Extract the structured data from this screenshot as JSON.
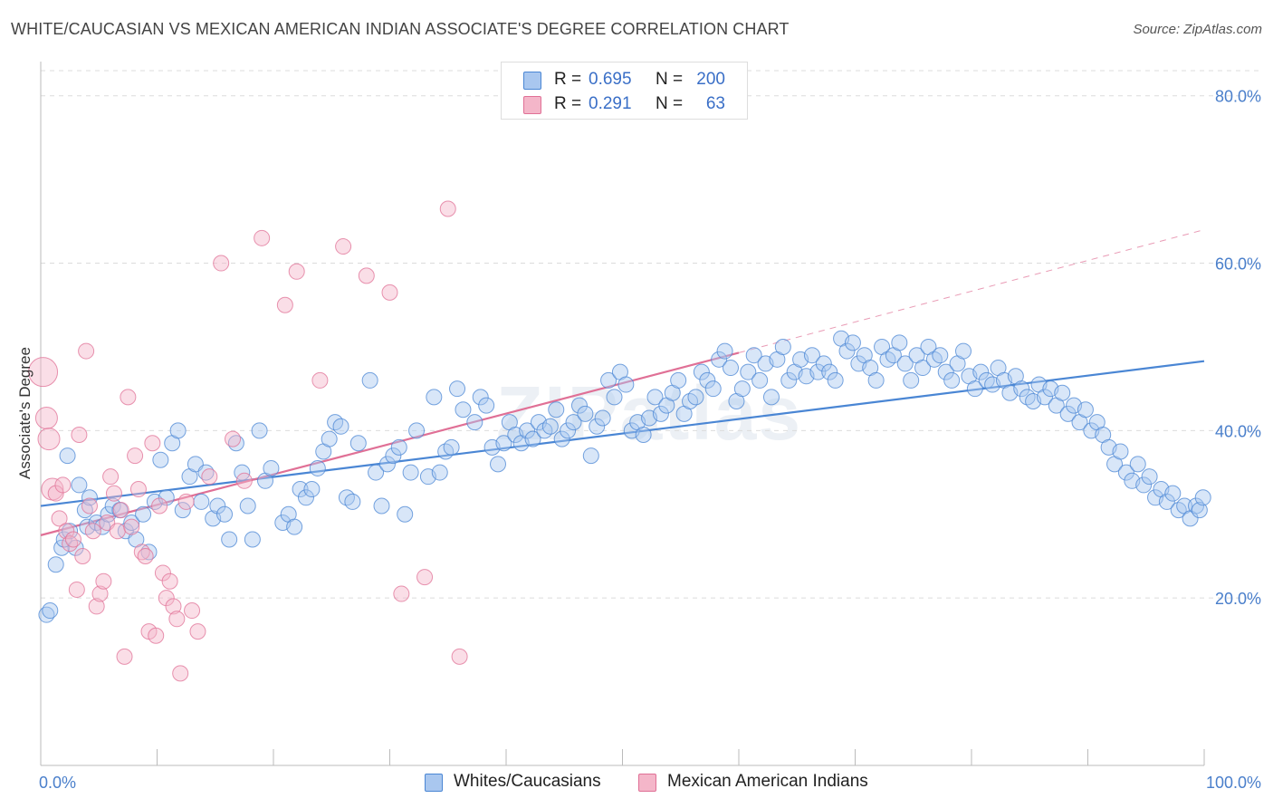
{
  "title": "WHITE/CAUCASIAN VS MEXICAN AMERICAN INDIAN ASSOCIATE'S DEGREE CORRELATION CHART",
  "source": "Source: ZipAtlas.com",
  "watermark": "ZIPatlas",
  "legend": {
    "rows": [
      {
        "r_label": "R =",
        "r_value": "0.695",
        "n_label": "N =",
        "n_value": "200",
        "color": "#a9c7ef"
      },
      {
        "r_label": "R =",
        "r_value": "0.291",
        "n_label": "N =",
        "n_value": "63",
        "color": "#f4b6c9"
      }
    ]
  },
  "chart_data": {
    "type": "scatter",
    "title": "WHITE/CAUCASIAN VS MEXICAN AMERICAN INDIAN ASSOCIATE'S DEGREE CORRELATION CHART",
    "xlabel": "",
    "ylabel": "Associate's Degree",
    "xlim": [
      0,
      100
    ],
    "ylim": [
      0,
      83
    ],
    "x_tick_labels": [
      "0.0%",
      "100.0%"
    ],
    "y_ticks": [
      20,
      40,
      60,
      80
    ],
    "y_tick_labels": [
      "20.0%",
      "40.0%",
      "60.0%",
      "80.0%"
    ],
    "grid": "horizontal-dashed",
    "legend_position": "top-center",
    "series": [
      {
        "name": "Whites/Caucasians",
        "color": "#4a86d4",
        "fill": "#a9c7ef",
        "trend": {
          "x": [
            0,
            100
          ],
          "y": [
            31.0,
            48.3
          ]
        },
        "points": [
          [
            0.5,
            18
          ],
          [
            0.8,
            18.5
          ],
          [
            1.3,
            24
          ],
          [
            1.8,
            26
          ],
          [
            2.0,
            27
          ],
          [
            2.3,
            37
          ],
          [
            2.5,
            28
          ],
          [
            3.0,
            26
          ],
          [
            3.3,
            33.5
          ],
          [
            3.8,
            30.5
          ],
          [
            4.0,
            28.5
          ],
          [
            4.2,
            32
          ],
          [
            4.8,
            29
          ],
          [
            5.3,
            28.5
          ],
          [
            5.8,
            30
          ],
          [
            6.2,
            31
          ],
          [
            6.8,
            30.5
          ],
          [
            7.3,
            28
          ],
          [
            7.8,
            29
          ],
          [
            8.2,
            27
          ],
          [
            8.8,
            30
          ],
          [
            9.3,
            25.5
          ],
          [
            9.8,
            31.5
          ],
          [
            10.3,
            36.5
          ],
          [
            10.8,
            32
          ],
          [
            11.3,
            38.5
          ],
          [
            11.8,
            40
          ],
          [
            12.2,
            30.5
          ],
          [
            12.8,
            34.5
          ],
          [
            13.3,
            36
          ],
          [
            13.8,
            31.5
          ],
          [
            14.2,
            35
          ],
          [
            14.8,
            29.5
          ],
          [
            15.2,
            31
          ],
          [
            15.8,
            30
          ],
          [
            16.2,
            27
          ],
          [
            16.8,
            38.5
          ],
          [
            17.3,
            35
          ],
          [
            17.8,
            31
          ],
          [
            18.2,
            27
          ],
          [
            18.8,
            40
          ],
          [
            19.3,
            34
          ],
          [
            19.8,
            35.5
          ],
          [
            20.8,
            29
          ],
          [
            21.3,
            30
          ],
          [
            21.8,
            28.5
          ],
          [
            22.3,
            33
          ],
          [
            22.8,
            32
          ],
          [
            23.3,
            33
          ],
          [
            23.8,
            35.5
          ],
          [
            24.3,
            37.5
          ],
          [
            24.8,
            39
          ],
          [
            25.3,
            41
          ],
          [
            25.8,
            40.5
          ],
          [
            26.3,
            32
          ],
          [
            26.8,
            31.5
          ],
          [
            27.3,
            38.5
          ],
          [
            28.3,
            46
          ],
          [
            28.8,
            35
          ],
          [
            29.3,
            31
          ],
          [
            29.8,
            36
          ],
          [
            30.3,
            37
          ],
          [
            30.8,
            38
          ],
          [
            31.3,
            30
          ],
          [
            31.8,
            35
          ],
          [
            32.3,
            40
          ],
          [
            33.3,
            34.5
          ],
          [
            33.8,
            44
          ],
          [
            34.3,
            35
          ],
          [
            34.8,
            37.5
          ],
          [
            35.3,
            38
          ],
          [
            35.8,
            45
          ],
          [
            36.3,
            42.5
          ],
          [
            37.3,
            41
          ],
          [
            37.8,
            44
          ],
          [
            38.3,
            43
          ],
          [
            38.8,
            38
          ],
          [
            39.3,
            36
          ],
          [
            39.8,
            38.5
          ],
          [
            40.3,
            41
          ],
          [
            40.8,
            39.5
          ],
          [
            41.3,
            38.5
          ],
          [
            41.8,
            40
          ],
          [
            42.3,
            39
          ],
          [
            42.8,
            41
          ],
          [
            43.3,
            40
          ],
          [
            43.8,
            40.5
          ],
          [
            44.3,
            42.5
          ],
          [
            44.8,
            39
          ],
          [
            45.3,
            40
          ],
          [
            45.8,
            41
          ],
          [
            46.3,
            43
          ],
          [
            46.8,
            42
          ],
          [
            47.3,
            37
          ],
          [
            47.8,
            40.5
          ],
          [
            48.3,
            41.5
          ],
          [
            48.8,
            46
          ],
          [
            49.3,
            44
          ],
          [
            49.8,
            47
          ],
          [
            50.3,
            45.5
          ],
          [
            50.8,
            40
          ],
          [
            51.3,
            41
          ],
          [
            51.8,
            39.5
          ],
          [
            52.3,
            41.5
          ],
          [
            52.8,
            44
          ],
          [
            53.3,
            42
          ],
          [
            53.8,
            43
          ],
          [
            54.3,
            44.5
          ],
          [
            54.8,
            46
          ],
          [
            55.3,
            42
          ],
          [
            55.8,
            43.5
          ],
          [
            56.3,
            44
          ],
          [
            56.8,
            47
          ],
          [
            57.3,
            46
          ],
          [
            57.8,
            45
          ],
          [
            58.3,
            48.5
          ],
          [
            58.8,
            49.5
          ],
          [
            59.3,
            47.5
          ],
          [
            59.8,
            43.5
          ],
          [
            60.3,
            45
          ],
          [
            60.8,
            47
          ],
          [
            61.3,
            49
          ],
          [
            61.8,
            46
          ],
          [
            62.3,
            48
          ],
          [
            62.8,
            44
          ],
          [
            63.3,
            48.5
          ],
          [
            63.8,
            50
          ],
          [
            64.3,
            46
          ],
          [
            64.8,
            47
          ],
          [
            65.3,
            48.5
          ],
          [
            65.8,
            46.5
          ],
          [
            66.3,
            49
          ],
          [
            66.8,
            47
          ],
          [
            67.3,
            48
          ],
          [
            67.8,
            47
          ],
          [
            68.3,
            46
          ],
          [
            68.8,
            51
          ],
          [
            69.3,
            49.5
          ],
          [
            69.8,
            50.5
          ],
          [
            70.3,
            48
          ],
          [
            70.8,
            49
          ],
          [
            71.3,
            47.5
          ],
          [
            71.8,
            46
          ],
          [
            72.3,
            50
          ],
          [
            72.8,
            48.5
          ],
          [
            73.3,
            49
          ],
          [
            73.8,
            50.5
          ],
          [
            74.3,
            48
          ],
          [
            74.8,
            46
          ],
          [
            75.3,
            49
          ],
          [
            75.8,
            47.5
          ],
          [
            76.3,
            50
          ],
          [
            76.8,
            48.5
          ],
          [
            77.3,
            49
          ],
          [
            77.8,
            47
          ],
          [
            78.3,
            46
          ],
          [
            78.8,
            48
          ],
          [
            79.3,
            49.5
          ],
          [
            79.8,
            46.5
          ],
          [
            80.3,
            45
          ],
          [
            80.8,
            47
          ],
          [
            81.3,
            46
          ],
          [
            81.8,
            45.5
          ],
          [
            82.3,
            47.5
          ],
          [
            82.8,
            46
          ],
          [
            83.3,
            44.5
          ],
          [
            83.8,
            46.5
          ],
          [
            84.3,
            45
          ],
          [
            84.8,
            44
          ],
          [
            85.3,
            43.5
          ],
          [
            85.8,
            45.5
          ],
          [
            86.3,
            44
          ],
          [
            86.8,
            45
          ],
          [
            87.3,
            43
          ],
          [
            87.8,
            44.5
          ],
          [
            88.3,
            42
          ],
          [
            88.8,
            43
          ],
          [
            89.3,
            41
          ],
          [
            89.8,
            42.5
          ],
          [
            90.3,
            40
          ],
          [
            90.8,
            41
          ],
          [
            91.3,
            39.5
          ],
          [
            91.8,
            38
          ],
          [
            92.3,
            36
          ],
          [
            92.8,
            37.5
          ],
          [
            93.3,
            35
          ],
          [
            93.8,
            34
          ],
          [
            94.3,
            36
          ],
          [
            94.8,
            33.5
          ],
          [
            95.3,
            34.5
          ],
          [
            95.8,
            32
          ],
          [
            96.3,
            33
          ],
          [
            96.8,
            31.5
          ],
          [
            97.3,
            32.5
          ],
          [
            97.8,
            30.5
          ],
          [
            98.3,
            31
          ],
          [
            98.8,
            29.5
          ],
          [
            99.3,
            31
          ],
          [
            99.6,
            30.5
          ],
          [
            99.9,
            32
          ]
        ]
      },
      {
        "name": "Mexican American Indians",
        "color": "#e07096",
        "fill": "#f4b6c9",
        "trend": {
          "x": [
            0,
            60
          ],
          "y": [
            27.5,
            49.3
          ]
        },
        "trend_extension": {
          "x": [
            60,
            100
          ],
          "y": [
            49.3,
            64
          ]
        },
        "points": [
          [
            0.2,
            47
          ],
          [
            0.5,
            41.5
          ],
          [
            0.7,
            39
          ],
          [
            1.0,
            33
          ],
          [
            1.3,
            32.5
          ],
          [
            1.6,
            29.5
          ],
          [
            1.9,
            33.5
          ],
          [
            2.2,
            28
          ],
          [
            2.5,
            26.5
          ],
          [
            2.8,
            27
          ],
          [
            3.1,
            21
          ],
          [
            3.3,
            39.5
          ],
          [
            3.6,
            25
          ],
          [
            3.9,
            49.5
          ],
          [
            4.2,
            31
          ],
          [
            4.5,
            28
          ],
          [
            4.8,
            19
          ],
          [
            5.1,
            20.5
          ],
          [
            5.4,
            22
          ],
          [
            5.7,
            29
          ],
          [
            6.0,
            34.5
          ],
          [
            6.3,
            32.5
          ],
          [
            6.6,
            28
          ],
          [
            6.9,
            30.5
          ],
          [
            7.2,
            13
          ],
          [
            7.5,
            44
          ],
          [
            7.8,
            28.5
          ],
          [
            8.1,
            37
          ],
          [
            8.4,
            33
          ],
          [
            8.7,
            25.5
          ],
          [
            9.0,
            25
          ],
          [
            9.3,
            16
          ],
          [
            9.6,
            38.5
          ],
          [
            9.9,
            15.5
          ],
          [
            10.2,
            31
          ],
          [
            10.5,
            23
          ],
          [
            10.8,
            20
          ],
          [
            11.1,
            22
          ],
          [
            11.4,
            19
          ],
          [
            11.7,
            17.5
          ],
          [
            12.0,
            11
          ],
          [
            12.5,
            31.5
          ],
          [
            13.0,
            18.5
          ],
          [
            13.5,
            16
          ],
          [
            14.5,
            34.5
          ],
          [
            15.5,
            60
          ],
          [
            16.5,
            39
          ],
          [
            17.5,
            34
          ],
          [
            19.0,
            63
          ],
          [
            21.0,
            55
          ],
          [
            22.0,
            59
          ],
          [
            24.0,
            46
          ],
          [
            26.0,
            62
          ],
          [
            28.0,
            58.5
          ],
          [
            30.0,
            56.5
          ],
          [
            31.0,
            20.5
          ],
          [
            33.0,
            22.5
          ],
          [
            35.0,
            66.5
          ],
          [
            36.0,
            13
          ]
        ]
      }
    ]
  },
  "bottom_legend": [
    {
      "label": "Whites/Caucasians",
      "color": "#a9c7ef"
    },
    {
      "label": "Mexican American Indians",
      "color": "#f4b6c9"
    }
  ]
}
